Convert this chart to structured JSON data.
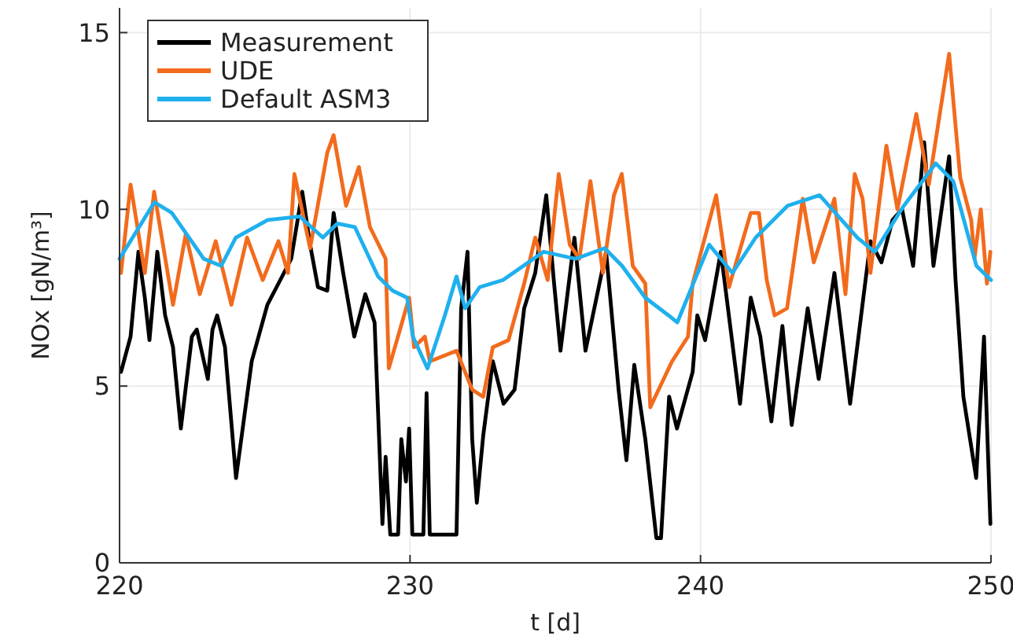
{
  "chart_data": {
    "type": "line",
    "xlabel": "t [d]",
    "ylabel": "NOx [gN/m³]",
    "xlim": [
      220,
      250
    ],
    "xticks": [
      220,
      230,
      240,
      250
    ],
    "ylim": [
      0,
      15.7
    ],
    "yticks": [
      0,
      5,
      10,
      15
    ],
    "grid": true,
    "legend": "top left",
    "line_style": "solid",
    "marker": "none",
    "series": [
      {
        "name": "Measurement",
        "color": "#000000",
        "x": [
          220.05,
          220.38,
          220.65,
          220.87,
          221.03,
          221.3,
          221.57,
          221.84,
          222.11,
          222.49,
          222.66,
          223.04,
          223.2,
          223.36,
          223.63,
          224.01,
          224.55,
          225.09,
          225.47,
          225.91,
          226.29,
          226.56,
          226.83,
          227.15,
          227.37,
          227.7,
          228.08,
          228.46,
          228.78,
          229.05,
          229.16,
          229.32,
          229.59,
          229.7,
          229.86,
          229.97,
          230.08,
          230.46,
          230.57,
          230.68,
          231.6,
          231.76,
          231.98,
          232.14,
          232.3,
          232.52,
          232.85,
          233.22,
          233.6,
          233.93,
          234.31,
          234.69,
          234.96,
          235.18,
          235.66,
          236.04,
          236.75,
          237.18,
          237.45,
          237.72,
          238.1,
          238.48,
          238.64,
          238.92,
          239.19,
          239.73,
          239.89,
          240.16,
          240.7,
          241.36,
          241.73,
          242.06,
          242.44,
          242.82,
          243.14,
          243.69,
          244.07,
          244.61,
          245.15,
          245.85,
          246.23,
          246.61,
          246.94,
          247.32,
          247.7,
          248.02,
          248.56,
          248.78,
          249.05,
          249.49,
          249.76,
          249.98
        ],
        "values": [
          5.4,
          6.4,
          8.8,
          7.5,
          6.3,
          8.8,
          7.0,
          6.1,
          3.8,
          6.4,
          6.6,
          5.2,
          6.6,
          7.0,
          6.1,
          2.4,
          5.7,
          7.3,
          7.9,
          8.6,
          10.5,
          9.0,
          7.8,
          7.7,
          9.9,
          8.2,
          6.4,
          7.6,
          6.8,
          1.1,
          3.0,
          0.8,
          0.8,
          3.5,
          2.3,
          3.8,
          0.8,
          0.8,
          4.8,
          0.8,
          0.8,
          7.2,
          8.8,
          3.5,
          1.7,
          3.6,
          5.7,
          4.5,
          4.9,
          7.2,
          8.2,
          10.4,
          7.9,
          6.0,
          9.2,
          6.0,
          8.8,
          4.9,
          2.9,
          5.6,
          3.5,
          0.7,
          0.7,
          4.7,
          3.8,
          5.4,
          7.0,
          6.3,
          8.8,
          4.5,
          7.5,
          6.4,
          4.0,
          6.7,
          3.9,
          7.2,
          5.2,
          8.2,
          4.5,
          9.1,
          8.5,
          9.7,
          10.0,
          8.4,
          11.9,
          8.4,
          11.5,
          8.0,
          4.7,
          2.4,
          6.4,
          1.1
        ]
      },
      {
        "name": "UDE",
        "color": "#f26b1d",
        "x": [
          220.05,
          220.38,
          220.87,
          221.19,
          221.84,
          222.28,
          222.76,
          223.31,
          223.85,
          224.39,
          224.93,
          225.47,
          225.8,
          226.02,
          226.56,
          227.15,
          227.37,
          227.8,
          228.24,
          228.62,
          229.16,
          229.27,
          229.97,
          230.14,
          230.51,
          230.68,
          231.6,
          232.14,
          232.52,
          232.85,
          233.39,
          233.93,
          234.31,
          234.74,
          235.12,
          235.5,
          235.83,
          236.21,
          236.64,
          237.02,
          237.29,
          237.67,
          238.1,
          238.27,
          239.02,
          239.57,
          239.73,
          240.54,
          240.98,
          241.73,
          242.01,
          242.28,
          242.55,
          242.98,
          243.52,
          243.9,
          244.61,
          244.99,
          245.31,
          245.58,
          245.85,
          246.4,
          246.78,
          247.43,
          247.86,
          248.56,
          248.94,
          249.32,
          249.43,
          249.65,
          249.86,
          249.98
        ],
        "values": [
          8.2,
          10.7,
          8.2,
          10.5,
          7.3,
          9.3,
          7.6,
          9.1,
          7.3,
          9.2,
          8.0,
          9.1,
          8.2,
          11.0,
          8.9,
          11.6,
          12.1,
          10.1,
          11.2,
          9.5,
          8.6,
          5.5,
          7.5,
          6.1,
          6.4,
          5.7,
          6.0,
          4.9,
          4.7,
          6.1,
          6.3,
          7.9,
          9.2,
          8.0,
          11.0,
          9.0,
          8.6,
          10.8,
          8.2,
          10.4,
          11.0,
          8.4,
          7.9,
          4.4,
          5.7,
          6.4,
          7.9,
          10.4,
          7.8,
          9.9,
          9.9,
          8.0,
          7.0,
          7.2,
          10.3,
          8.5,
          10.3,
          7.6,
          11.0,
          10.3,
          8.2,
          11.8,
          10.0,
          12.7,
          10.7,
          14.4,
          10.9,
          9.7,
          8.6,
          10.0,
          7.9,
          8.8
        ]
      },
      {
        "name": "Default ASM3",
        "color": "#1fb0ee",
        "x": [
          220.0,
          221.2,
          221.8,
          222.9,
          223.5,
          224.0,
          225.1,
          226.2,
          227.0,
          227.5,
          228.1,
          228.9,
          229.4,
          229.9,
          230.1,
          230.6,
          231.2,
          231.6,
          231.9,
          232.4,
          233.2,
          234.6,
          235.7,
          236.7,
          237.3,
          238.1,
          238.9,
          239.2,
          240.3,
          241.1,
          241.9,
          243.0,
          244.1,
          245.4,
          246.0,
          247.0,
          248.1,
          248.7,
          249.5,
          250.0
        ],
        "values": [
          8.6,
          10.2,
          9.9,
          8.6,
          8.4,
          9.2,
          9.7,
          9.8,
          9.2,
          9.6,
          9.5,
          8.1,
          7.7,
          7.5,
          6.4,
          5.5,
          7.0,
          8.1,
          7.2,
          7.8,
          8.0,
          8.8,
          8.6,
          8.9,
          8.4,
          7.5,
          7.0,
          6.8,
          9.0,
          8.2,
          9.2,
          10.1,
          10.4,
          9.2,
          8.8,
          10.1,
          11.3,
          10.8,
          8.4,
          8.0
        ]
      }
    ]
  }
}
